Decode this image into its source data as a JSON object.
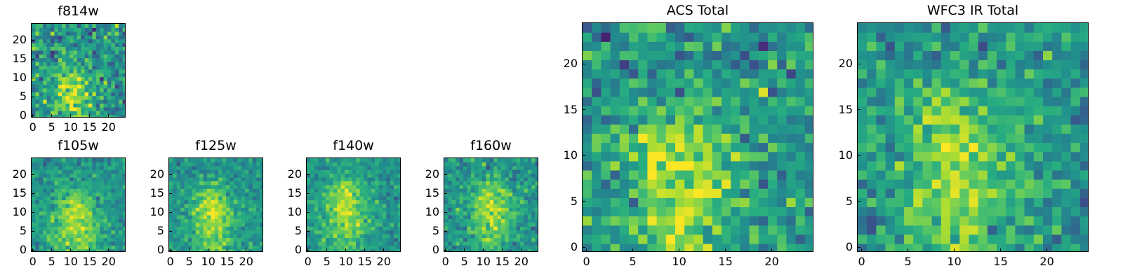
{
  "chart_data": [
    {
      "type": "heatmap",
      "title": "f814w",
      "xlabel": "",
      "ylabel": "",
      "xlim": [
        0,
        25
      ],
      "ylim": [
        0,
        25
      ],
      "xticks": [
        0,
        5,
        10,
        15,
        20
      ],
      "yticks": [
        0,
        5,
        10,
        15,
        20
      ],
      "xtick_labels": [
        "0",
        "5",
        "10",
        "15",
        "20"
      ],
      "ytick_labels": [
        "0",
        "5",
        "10",
        "15",
        "20"
      ],
      "grid_size": 25,
      "colormap": "viridis",
      "peak": [
        10,
        3.5
      ],
      "source_sigma": 4.5,
      "noise_level": 0.42,
      "seed": 11
    },
    {
      "type": "heatmap",
      "title": "f105w",
      "xlabel": "",
      "ylabel": "",
      "xlim": [
        0,
        25
      ],
      "ylim": [
        0,
        25
      ],
      "xticks": [
        0,
        5,
        10,
        15,
        20
      ],
      "yticks": [
        0,
        5,
        10,
        15,
        20
      ],
      "xtick_labels": [
        "0",
        "5",
        "10",
        "15",
        "20"
      ],
      "ytick_labels": [
        "0",
        "5",
        "10",
        "15",
        "20"
      ],
      "grid_size": 25,
      "colormap": "viridis",
      "peak": [
        11,
        5
      ],
      "source_sigma": 5.5,
      "noise_level": 0.25,
      "seed": 23
    },
    {
      "type": "heatmap",
      "title": "f125w",
      "xlabel": "",
      "ylabel": "",
      "xlim": [
        0,
        25
      ],
      "ylim": [
        0,
        25
      ],
      "xticks": [
        0,
        5,
        10,
        15,
        20
      ],
      "yticks": [
        0,
        5,
        10,
        15,
        20
      ],
      "xtick_labels": [
        "0",
        "5",
        "10",
        "15",
        "20"
      ],
      "ytick_labels": [
        "0",
        "5",
        "10",
        "15",
        "20"
      ],
      "grid_size": 25,
      "colormap": "viridis",
      "peak": [
        11,
        6
      ],
      "source_sigma": 5.5,
      "noise_level": 0.25,
      "seed": 37
    },
    {
      "type": "heatmap",
      "title": "f140w",
      "xlabel": "",
      "ylabel": "",
      "xlim": [
        0,
        25
      ],
      "ylim": [
        0,
        25
      ],
      "xticks": [
        0,
        5,
        10,
        15,
        20
      ],
      "yticks": [
        0,
        5,
        10,
        15,
        20
      ],
      "xtick_labels": [
        "0",
        "5",
        "10",
        "15",
        "20"
      ],
      "ytick_labels": [
        "0",
        "5",
        "10",
        "15",
        "20"
      ],
      "grid_size": 25,
      "colormap": "viridis",
      "peak": [
        10,
        8
      ],
      "source_sigma": 5.5,
      "noise_level": 0.25,
      "seed": 41
    },
    {
      "type": "heatmap",
      "title": "f160w",
      "xlabel": "",
      "ylabel": "",
      "xlim": [
        0,
        25
      ],
      "ylim": [
        0,
        25
      ],
      "xticks": [
        0,
        5,
        10,
        15,
        20
      ],
      "yticks": [
        0,
        5,
        10,
        15,
        20
      ],
      "xtick_labels": [
        "0",
        "5",
        "10",
        "15",
        "20"
      ],
      "ytick_labels": [
        "0",
        "5",
        "10",
        "15",
        "20"
      ],
      "grid_size": 25,
      "colormap": "viridis",
      "peak": [
        12,
        8
      ],
      "source_sigma": 5,
      "noise_level": 0.3,
      "seed": 53
    },
    {
      "type": "heatmap",
      "title": "ACS Total",
      "xlabel": "",
      "ylabel": "",
      "xlim": [
        0,
        25
      ],
      "ylim": [
        0,
        25
      ],
      "xticks": [
        0,
        5,
        10,
        15,
        20
      ],
      "yticks": [
        0,
        5,
        10,
        15,
        20
      ],
      "xtick_labels": [
        "0",
        "5",
        "10",
        "15",
        "20"
      ],
      "ytick_labels": [
        "0",
        "5",
        "10",
        "15",
        "20"
      ],
      "grid_size": 25,
      "colormap": "viridis",
      "peak": [
        10,
        4
      ],
      "source_sigma": 5,
      "noise_level": 0.38,
      "seed": 67
    },
    {
      "type": "heatmap",
      "title": "WFC3 IR Total",
      "xlabel": "",
      "ylabel": "",
      "xlim": [
        0,
        25
      ],
      "ylim": [
        0,
        25
      ],
      "xticks": [
        0,
        5,
        10,
        15,
        20
      ],
      "yticks": [
        0,
        5,
        10,
        15,
        20
      ],
      "xtick_labels": [
        "0",
        "5",
        "10",
        "15",
        "20"
      ],
      "ytick_labels": [
        "0",
        "5",
        "10",
        "15",
        "20"
      ],
      "grid_size": 25,
      "colormap": "viridis",
      "peak": [
        10,
        6
      ],
      "source_sigma": 5.5,
      "noise_level": 0.35,
      "seed": 79
    }
  ]
}
